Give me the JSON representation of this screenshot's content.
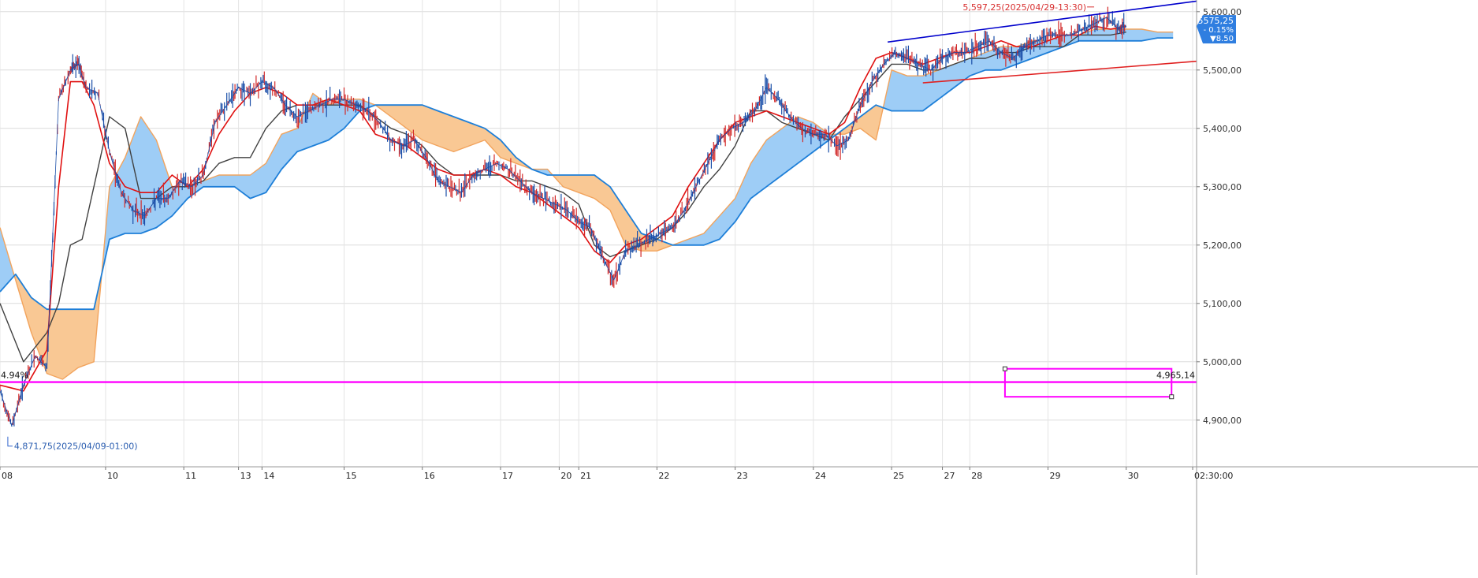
{
  "chart_data": {
    "type": "candlestick-ichimoku",
    "title": "",
    "xlabel": "",
    "ylabel": "",
    "ylim": [
      4820,
      5620
    ],
    "grid": true,
    "x_tick_labels": [
      {
        "label": "08",
        "day": 0
      },
      {
        "label": "10",
        "day": 1.35
      },
      {
        "label": "11",
        "day": 2.35
      },
      {
        "label": "13",
        "day": 3.05
      },
      {
        "label": "14",
        "day": 3.35
      },
      {
        "label": "15",
        "day": 4.4
      },
      {
        "label": "16",
        "day": 5.4
      },
      {
        "label": "17",
        "day": 6.4
      },
      {
        "label": "20",
        "day": 7.15
      },
      {
        "label": "21",
        "day": 7.4
      },
      {
        "label": "22",
        "day": 8.4
      },
      {
        "label": "23",
        "day": 9.4
      },
      {
        "label": "24",
        "day": 10.4
      },
      {
        "label": "25",
        "day": 11.4
      },
      {
        "label": "27",
        "day": 12.05
      },
      {
        "label": "28",
        "day": 12.4
      },
      {
        "label": "29",
        "day": 13.4
      },
      {
        "label": "30",
        "day": 14.4
      },
      {
        "label": "02:30:00",
        "day": 15.25
      }
    ],
    "y_tick_labels": [
      "5,600,00",
      "5,500,00",
      "5,400,00",
      "5,300,00",
      "5,200,00",
      "5,100,00",
      "5,000,00",
      "4,900,00"
    ],
    "y_tick_values": [
      5600,
      5500,
      5400,
      5300,
      5200,
      5100,
      5000,
      4900
    ],
    "last_price": {
      "value": 5575.25,
      "label": "5575,25",
      "change_pct": "- 0.15%",
      "change": "▼8.50"
    },
    "annotations": {
      "high": {
        "text": "5,597,25(2025/04/29-13:30)",
        "value": 5597.25,
        "day": 13.95
      },
      "low": {
        "text": "4,871,75(2025/04/09-01:00)",
        "value": 4871.75,
        "day": 0.1
      },
      "hline_left": "4.94%",
      "hline_right": "4,965,14"
    },
    "horizontal_line": {
      "value": 4965.14,
      "color": "#ff00ff"
    },
    "trendlines": [
      {
        "name": "upper",
        "color": "#0000cc",
        "from": [
          11.35,
          5548
        ],
        "to": [
          15.3,
          5618
        ]
      },
      {
        "name": "lower",
        "color": "#e02020",
        "from": [
          11.8,
          5478
        ],
        "to": [
          15.3,
          5515
        ]
      }
    ],
    "box": {
      "x0": 12.85,
      "x1": 14.98,
      "y0": 4988,
      "y1": 4940,
      "color": "#ff00ff"
    },
    "series": [
      {
        "role": "price",
        "color": "#1a4ea8",
        "day": [
          0,
          0.15,
          0.3,
          0.45,
          0.6,
          0.75,
          0.9,
          1.0,
          1.1,
          1.25,
          1.4,
          1.55,
          1.7,
          1.85,
          2.0,
          2.15,
          2.3,
          2.45,
          2.6,
          2.75,
          2.9,
          3.05,
          3.2,
          3.35,
          3.5,
          3.65,
          3.8,
          3.95,
          4.1,
          4.25,
          4.4,
          4.55,
          4.7,
          4.85,
          5.0,
          5.15,
          5.3,
          5.45,
          5.6,
          5.75,
          5.9,
          6.05,
          6.2,
          6.35,
          6.5,
          6.65,
          6.8,
          6.95,
          7.1,
          7.25,
          7.4,
          7.55,
          7.7,
          7.85,
          8.0,
          8.15,
          8.3,
          8.45,
          8.6,
          8.75,
          8.9,
          9.05,
          9.2,
          9.35,
          9.5,
          9.65,
          9.8,
          9.95,
          10.1,
          10.25,
          10.4,
          10.55,
          10.7,
          10.85,
          11.0,
          11.15,
          11.3,
          11.45,
          11.6,
          11.75,
          11.9,
          12.05,
          12.2,
          12.35,
          12.5,
          12.65,
          12.8,
          12.95,
          13.1,
          13.25,
          13.4,
          13.55,
          13.7,
          13.85,
          14.0,
          14.15,
          14.3,
          14.4
        ],
        "values": [
          4950,
          4890,
          4960,
          5010,
          4990,
          5450,
          5500,
          5510,
          5470,
          5460,
          5360,
          5290,
          5260,
          5250,
          5280,
          5280,
          5310,
          5300,
          5320,
          5410,
          5440,
          5470,
          5460,
          5480,
          5470,
          5440,
          5420,
          5430,
          5440,
          5450,
          5450,
          5440,
          5430,
          5410,
          5380,
          5370,
          5380,
          5350,
          5310,
          5300,
          5290,
          5320,
          5330,
          5340,
          5330,
          5310,
          5290,
          5280,
          5270,
          5260,
          5240,
          5230,
          5180,
          5140,
          5190,
          5200,
          5210,
          5220,
          5230,
          5260,
          5300,
          5340,
          5380,
          5400,
          5410,
          5430,
          5470,
          5450,
          5420,
          5400,
          5390,
          5390,
          5370,
          5380,
          5440,
          5480,
          5510,
          5530,
          5520,
          5510,
          5500,
          5520,
          5530,
          5530,
          5540,
          5550,
          5530,
          5520,
          5540,
          5550,
          5560,
          5560,
          5560,
          5570,
          5580,
          5590,
          5570,
          5575
        ]
      },
      {
        "role": "tenkan",
        "color": "#e01010",
        "day": [
          0,
          0.3,
          0.6,
          0.75,
          0.9,
          1.05,
          1.2,
          1.4,
          1.6,
          1.8,
          2.0,
          2.2,
          2.4,
          2.6,
          2.8,
          3.0,
          3.2,
          3.4,
          3.6,
          3.8,
          4.0,
          4.2,
          4.4,
          4.6,
          4.8,
          5.0,
          5.2,
          5.4,
          5.6,
          5.8,
          6.0,
          6.2,
          6.4,
          6.6,
          6.8,
          7.0,
          7.2,
          7.4,
          7.6,
          7.8,
          8.0,
          8.2,
          8.4,
          8.6,
          8.8,
          9.0,
          9.2,
          9.4,
          9.6,
          9.8,
          10.0,
          10.2,
          10.4,
          10.6,
          10.8,
          11.0,
          11.2,
          11.4,
          11.6,
          11.8,
          12.0,
          12.2,
          12.4,
          12.6,
          12.8,
          13.0,
          13.2,
          13.4,
          13.6,
          13.8,
          14.0,
          14.2,
          14.4
        ],
        "values": [
          4960,
          4950,
          5020,
          5300,
          5480,
          5480,
          5440,
          5340,
          5300,
          5290,
          5290,
          5320,
          5300,
          5330,
          5390,
          5430,
          5460,
          5470,
          5460,
          5440,
          5440,
          5450,
          5440,
          5430,
          5390,
          5380,
          5370,
          5350,
          5330,
          5320,
          5320,
          5330,
          5320,
          5300,
          5290,
          5270,
          5250,
          5230,
          5190,
          5170,
          5200,
          5210,
          5230,
          5250,
          5300,
          5340,
          5380,
          5410,
          5420,
          5430,
          5420,
          5410,
          5400,
          5390,
          5410,
          5470,
          5520,
          5530,
          5520,
          5510,
          5520,
          5530,
          5530,
          5540,
          5550,
          5540,
          5540,
          5550,
          5560,
          5560,
          5575,
          5570,
          5575
        ]
      },
      {
        "role": "kijun",
        "color": "#404040",
        "day": [
          0,
          0.3,
          0.6,
          0.75,
          0.9,
          1.05,
          1.2,
          1.4,
          1.6,
          1.8,
          2.0,
          2.2,
          2.4,
          2.6,
          2.8,
          3.0,
          3.2,
          3.4,
          3.6,
          3.8,
          4.0,
          4.2,
          4.4,
          4.6,
          4.8,
          5.0,
          5.2,
          5.4,
          5.6,
          5.8,
          6.0,
          6.2,
          6.4,
          6.6,
          6.8,
          7.0,
          7.2,
          7.4,
          7.6,
          7.8,
          8.0,
          8.2,
          8.4,
          8.6,
          8.8,
          9.0,
          9.2,
          9.4,
          9.6,
          9.8,
          10.0,
          10.2,
          10.4,
          10.6,
          10.8,
          11.0,
          11.2,
          11.4,
          11.6,
          11.8,
          12.0,
          12.2,
          12.4,
          12.6,
          12.8,
          13.0,
          13.2,
          13.4,
          13.6,
          13.8,
          14.0,
          14.2,
          14.4
        ],
        "values": [
          5100,
          5000,
          5050,
          5100,
          5200,
          5210,
          5300,
          5420,
          5400,
          5280,
          5280,
          5300,
          5300,
          5310,
          5340,
          5350,
          5350,
          5400,
          5430,
          5440,
          5440,
          5440,
          5440,
          5440,
          5420,
          5400,
          5390,
          5370,
          5340,
          5320,
          5320,
          5320,
          5320,
          5310,
          5310,
          5300,
          5290,
          5270,
          5200,
          5180,
          5190,
          5200,
          5210,
          5230,
          5260,
          5300,
          5330,
          5370,
          5430,
          5430,
          5410,
          5400,
          5390,
          5380,
          5420,
          5450,
          5480,
          5510,
          5510,
          5500,
          5500,
          5510,
          5520,
          5520,
          5530,
          5530,
          5540,
          5540,
          5540,
          5560,
          5560,
          5560,
          5565
        ]
      },
      {
        "role": "senkou_a",
        "color": "#1e7fd8",
        "day": [
          0,
          0.2,
          0.4,
          0.6,
          0.8,
          1.0,
          1.2,
          1.4,
          1.6,
          1.8,
          2.0,
          2.2,
          2.4,
          2.6,
          2.8,
          3.0,
          3.2,
          3.4,
          3.6,
          3.8,
          4.0,
          4.2,
          4.4,
          4.6,
          4.8,
          5.0,
          5.2,
          5.4,
          5.6,
          5.8,
          6.0,
          6.2,
          6.4,
          6.6,
          6.8,
          7.0,
          7.2,
          7.4,
          7.6,
          7.8,
          8.0,
          8.2,
          8.4,
          8.6,
          8.8,
          9.0,
          9.2,
          9.4,
          9.6,
          9.8,
          10.0,
          10.2,
          10.4,
          10.6,
          10.8,
          11.0,
          11.2,
          11.4,
          11.6,
          11.8,
          12.0,
          12.2,
          12.4,
          12.6,
          12.8,
          13.0,
          13.2,
          13.4,
          13.6,
          13.8,
          14.0,
          14.2,
          14.4,
          14.6,
          14.8,
          15.0
        ],
        "values": [
          5120,
          5150,
          5110,
          5090,
          5090,
          5090,
          5090,
          5210,
          5220,
          5220,
          5230,
          5250,
          5280,
          5300,
          5300,
          5300,
          5280,
          5290,
          5330,
          5360,
          5370,
          5380,
          5400,
          5430,
          5440,
          5440,
          5440,
          5440,
          5430,
          5420,
          5410,
          5400,
          5380,
          5350,
          5330,
          5320,
          5320,
          5320,
          5320,
          5300,
          5260,
          5220,
          5210,
          5200,
          5200,
          5200,
          5210,
          5240,
          5280,
          5300,
          5320,
          5340,
          5360,
          5380,
          5400,
          5420,
          5440,
          5430,
          5430,
          5430,
          5450,
          5470,
          5490,
          5500,
          5500,
          5510,
          5520,
          5530,
          5540,
          5550,
          5550,
          5550,
          5550,
          5550,
          5555,
          5555
        ]
      },
      {
        "role": "senkou_b",
        "color": "#f2a35c",
        "day": [
          0,
          0.2,
          0.4,
          0.6,
          0.8,
          1.0,
          1.2,
          1.4,
          1.6,
          1.8,
          2.0,
          2.2,
          2.4,
          2.6,
          2.8,
          3.0,
          3.2,
          3.4,
          3.6,
          3.8,
          4.0,
          4.2,
          4.4,
          4.6,
          4.8,
          5.0,
          5.2,
          5.4,
          5.6,
          5.8,
          6.0,
          6.2,
          6.4,
          6.6,
          6.8,
          7.0,
          7.2,
          7.4,
          7.6,
          7.8,
          8.0,
          8.2,
          8.4,
          8.6,
          8.8,
          9.0,
          9.2,
          9.4,
          9.6,
          9.8,
          10.0,
          10.2,
          10.4,
          10.6,
          10.8,
          11.0,
          11.2,
          11.4,
          11.6,
          11.8,
          12.0,
          12.2,
          12.4,
          12.6,
          12.8,
          13.0,
          13.2,
          13.4,
          13.6,
          13.8,
          14.0,
          14.2,
          14.4,
          14.6,
          14.8,
          15.0
        ],
        "values": [
          5230,
          5140,
          5050,
          4980,
          4970,
          4990,
          5000,
          5300,
          5350,
          5420,
          5380,
          5300,
          5300,
          5310,
          5320,
          5320,
          5320,
          5340,
          5390,
          5400,
          5460,
          5440,
          5450,
          5450,
          5440,
          5420,
          5400,
          5380,
          5370,
          5360,
          5370,
          5380,
          5350,
          5340,
          5330,
          5330,
          5300,
          5290,
          5280,
          5260,
          5200,
          5190,
          5190,
          5200,
          5210,
          5220,
          5250,
          5280,
          5340,
          5380,
          5400,
          5420,
          5410,
          5390,
          5390,
          5400,
          5380,
          5500,
          5490,
          5490,
          5500,
          5510,
          5520,
          5530,
          5540,
          5540,
          5550,
          5550,
          5560,
          5560,
          5570,
          5570,
          5570,
          5570,
          5565,
          5565
        ]
      }
    ]
  }
}
